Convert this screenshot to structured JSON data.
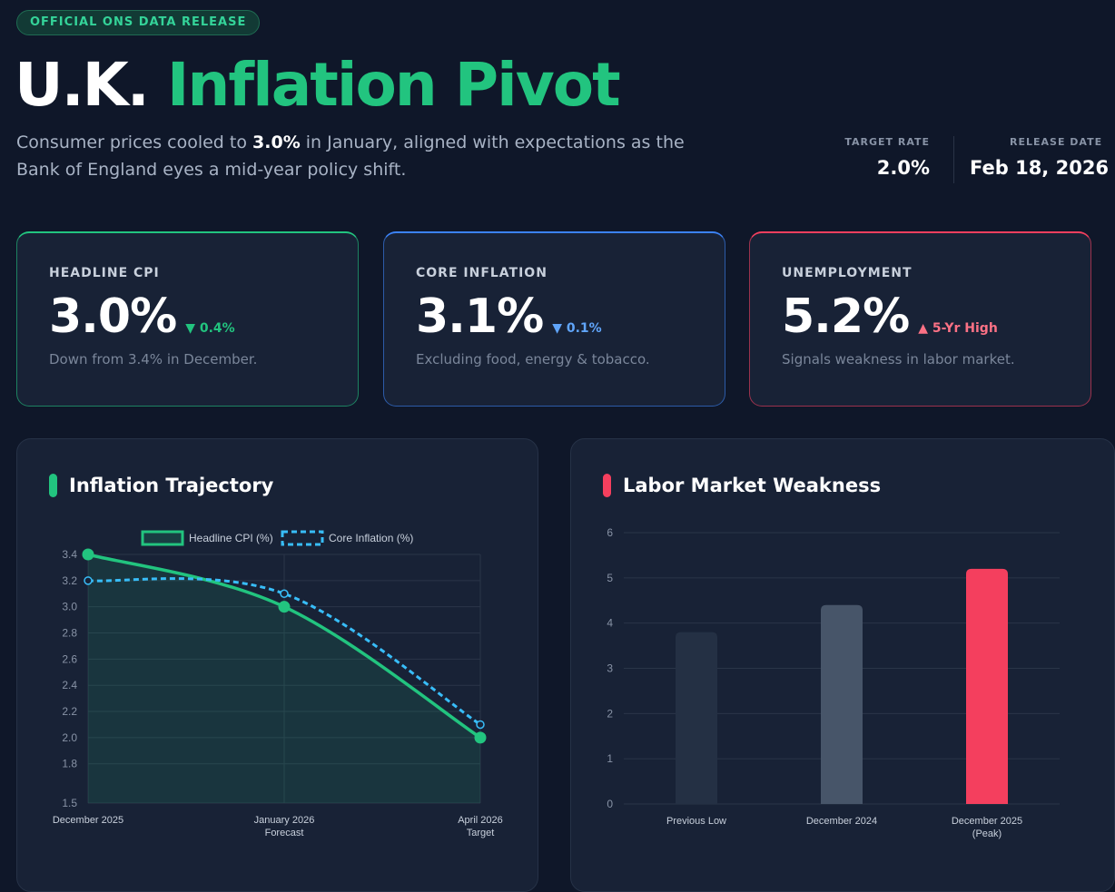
{
  "header": {
    "badge": "OFFICIAL ONS DATA RELEASE",
    "title_part1": "U.K.",
    "title_part2": "Inflation Pivot",
    "subtitle_pre": "Consumer prices cooled to ",
    "subtitle_bold": "3.0%",
    "subtitle_post": " in January, aligned with expectations as the Bank of England eyes a mid-year policy shift.",
    "target_rate_label": "TARGET RATE",
    "target_rate_value": "2.0%",
    "release_date_label": "RELEASE DATE",
    "release_date_value": "Feb 18, 2026"
  },
  "stats": [
    {
      "label": "HEADLINE CPI",
      "value": "3.0%",
      "delta_icon": "▼",
      "delta": "0.4%",
      "note": "Down from 3.4% in December.",
      "color": "#22c47f"
    },
    {
      "label": "CORE INFLATION",
      "value": "3.1%",
      "delta_icon": "▼",
      "delta": "0.1%",
      "note": "Excluding food, energy & tobacco.",
      "color": "#3b82f6"
    },
    {
      "label": "UNEMPLOYMENT",
      "value": "5.2%",
      "delta_icon": "▲",
      "delta": "5-Yr High",
      "note": "Signals weakness in labor market.",
      "color": "#f43f5e"
    }
  ],
  "panels": {
    "inflation_title": "Inflation Trajectory",
    "labor_title": "Labor Market Weakness"
  },
  "chart_data": [
    {
      "type": "line",
      "title": "Inflation Trajectory",
      "categories": [
        [
          "December 2025"
        ],
        [
          "January 2026",
          "Forecast"
        ],
        [
          "April 2026",
          "Target"
        ]
      ],
      "series": [
        {
          "name": "Headline CPI (%)",
          "values": [
            3.4,
            3.0,
            2.0
          ],
          "color": "#22c47f"
        },
        {
          "name": "Core Inflation (%)",
          "values": [
            3.2,
            3.1,
            2.1
          ],
          "color": "#38bdf8"
        }
      ],
      "yticks": [
        "1.5",
        "1.8",
        "2.0",
        "2.2",
        "2.4",
        "2.6",
        "2.8",
        "3.0",
        "3.2",
        "3.4"
      ],
      "ylim": [
        1.5,
        3.4
      ],
      "legend": "top"
    },
    {
      "type": "bar",
      "title": "Labor Market Weakness",
      "categories": [
        [
          "Previous Low"
        ],
        [
          "December 2024"
        ],
        [
          "December 2025",
          "(Peak)"
        ]
      ],
      "values": [
        3.8,
        4.4,
        5.2
      ],
      "colors": [
        "#243044",
        "#475569",
        "#f43f5e"
      ],
      "yticks": [
        "0",
        "1",
        "2",
        "3",
        "4",
        "5",
        "6"
      ],
      "ylim": [
        0,
        6
      ]
    }
  ]
}
